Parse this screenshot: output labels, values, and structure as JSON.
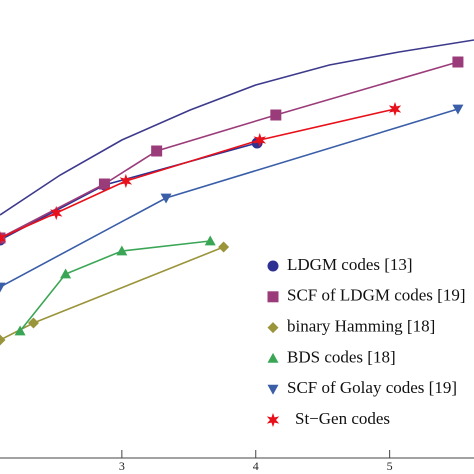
{
  "chart_data": {
    "type": "line",
    "xlim": [
      2.09,
      5.63
    ],
    "xticks": [
      3,
      4,
      5
    ],
    "ylim": [
      0,
      458
    ],
    "series": [
      {
        "color": "#3d3a8c",
        "marker": "none",
        "x": [
          2.09,
          2.54,
          3.0,
          3.51,
          4.0,
          4.55,
          5.07,
          5.63
        ],
        "values": [
          243,
          283,
          318,
          348,
          373,
          393,
          406,
          418
        ]
      },
      {
        "name": "LDGM codes [13]",
        "color": "#2e3192",
        "marker": "circle",
        "x": [
          2.09,
          2.87,
          4.01
        ],
        "values": [
          218,
          273,
          315
        ]
      },
      {
        "name": "SCF of LDGM codes [19]",
        "color": "#9b3c7a",
        "marker": "square",
        "x": [
          2.09,
          2.87,
          3.26,
          4.15,
          5.51
        ],
        "values": [
          220,
          274,
          307,
          343,
          396
        ]
      },
      {
        "name": "binary Hamming [18]",
        "color": "#9a943a",
        "marker": "diamond",
        "x": [
          2.09,
          2.34,
          3.76
        ],
        "values": [
          118,
          135,
          211
        ]
      },
      {
        "name": "BDS codes [18]",
        "color": "#3aa655",
        "marker": "triangle-up",
        "x": [
          2.24,
          2.58,
          3.0,
          3.66
        ],
        "values": [
          127,
          184,
          207,
          217
        ]
      },
      {
        "name": "SCF of Golay codes [19]",
        "color": "#3a5ea8",
        "marker": "triangle-down",
        "x": [
          2.09,
          3.33,
          5.51
        ],
        "values": [
          171,
          260,
          349
        ]
      },
      {
        "name": "St−Gen codes",
        "color": "#e8101a",
        "marker": "star",
        "x": [
          2.09,
          2.51,
          3.03,
          4.03,
          5.04
        ],
        "values": [
          220,
          245,
          277,
          318,
          349
        ]
      }
    ]
  }
}
